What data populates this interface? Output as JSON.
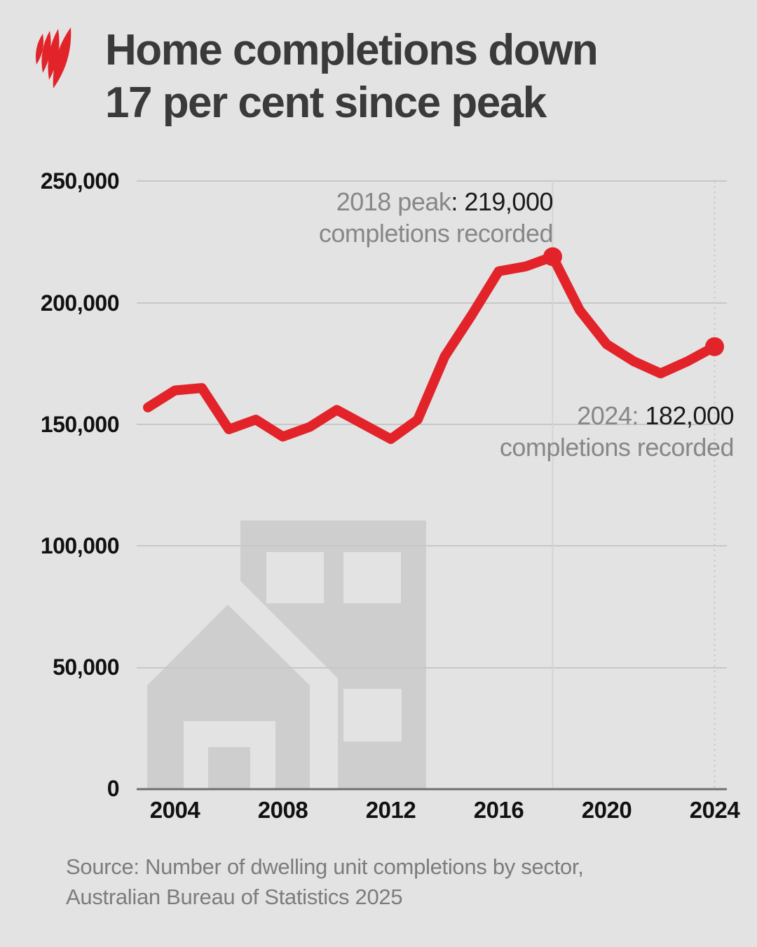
{
  "header": {
    "title_line1": "Home completions down",
    "title_line2": "17 per cent since peak",
    "logo": "sbs-mercury-logo"
  },
  "chart_data": {
    "type": "line",
    "title": "Home completions down 17 per cent since peak",
    "series_name": "Dwelling unit completions",
    "x": [
      2003,
      2004,
      2005,
      2006,
      2007,
      2008,
      2009,
      2010,
      2011,
      2012,
      2013,
      2014,
      2015,
      2016,
      2017,
      2018,
      2019,
      2020,
      2021,
      2022,
      2023,
      2024
    ],
    "values": [
      157000,
      164000,
      165000,
      148000,
      152000,
      145000,
      149000,
      156000,
      150000,
      144000,
      152000,
      178000,
      195000,
      213000,
      215000,
      219000,
      197000,
      183000,
      176000,
      171000,
      176000,
      182000
    ],
    "ylim": [
      0,
      250000
    ],
    "ytick_values": [
      250000,
      200000,
      150000,
      100000,
      50000,
      0
    ],
    "ytick_labels": [
      "250,000",
      "200,000",
      "150,000",
      "100,000",
      "50,000",
      "0"
    ],
    "xtick_values": [
      2004,
      2008,
      2012,
      2016,
      2020,
      2024
    ],
    "xtick_labels": [
      "2004",
      "2008",
      "2012",
      "2016",
      "2020",
      "2024"
    ],
    "xlabel": "",
    "ylabel": "",
    "grid": "horizontal, plus vertical guide at 2018 and dotted guide at 2024",
    "legend": "none",
    "line_color": "#e2242a",
    "markers": [
      {
        "year": 2018,
        "value": 219000
      },
      {
        "year": 2024,
        "value": 182000
      }
    ],
    "annotations": [
      {
        "id": "peak",
        "gray": "2018 peak",
        "black": ": 219,000",
        "line2": "completions recorded"
      },
      {
        "id": "latest",
        "gray": "2024:",
        "black": " 182,000",
        "line2": "completions recorded"
      }
    ]
  },
  "source": {
    "line1": "Source: Number of dwelling unit completions by sector,",
    "line2": "Australian Bureau of Statistics 2025"
  },
  "colors": {
    "background": "#e3e3e3",
    "accent_red": "#e2242a",
    "watermark_gray": "#cecece",
    "gridline": "#c7c7c7",
    "axis_line": "#6f6f6f",
    "title_text": "#3a3a3a",
    "annotation_gray": "#878787",
    "annotation_black": "#1b1b1b",
    "source_text": "#7c7c7c"
  }
}
